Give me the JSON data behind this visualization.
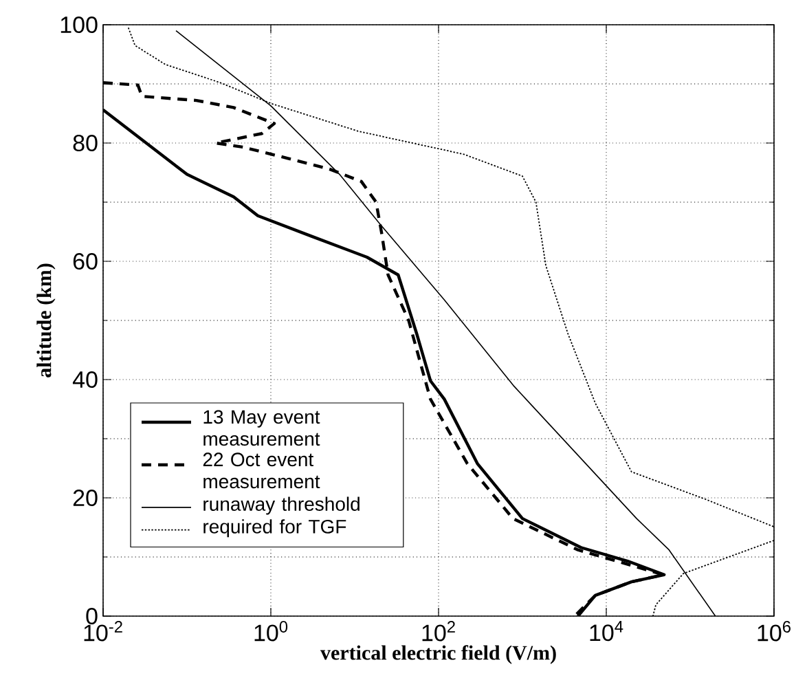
{
  "chart_data": {
    "type": "line",
    "xlabel": "vertical electric field (V/m)",
    "ylabel": "altitude (km)",
    "log": "x",
    "xlim": [
      0.01,
      1000000
    ],
    "ylim": [
      0,
      100
    ],
    "xticks": [
      {
        "value": 0.01,
        "label": "10$^{-2}$"
      },
      {
        "value": 1,
        "label": "10$^{0}$"
      },
      {
        "value": 100,
        "label": "10$^{2}$"
      },
      {
        "value": 10000,
        "label": "10$^{4}$"
      },
      {
        "value": 1000000,
        "label": "10$^{6}$"
      }
    ],
    "yticks": [
      0,
      20,
      40,
      60,
      80,
      100
    ],
    "grid": true,
    "legend": "bottom left",
    "marker": "none",
    "series": [
      {
        "name": "13 May event measurement",
        "color": "#000000",
        "line_style": "solid",
        "x": [
          0.01,
          0.1,
          0.36,
          0.7,
          3.1,
          14,
          33,
          55,
          80,
          117,
          290,
          1000,
          5000,
          18000,
          49000,
          20000,
          7400,
          4600
        ],
        "values": [
          85.6,
          74.7,
          70.9,
          67.7,
          64.2,
          60.7,
          57.7,
          47.7,
          39.8,
          36.7,
          25.8,
          16.5,
          11.6,
          9.3,
          7.0,
          5.8,
          3.5,
          0
        ]
      },
      {
        "name": "22 Oct event measurement",
        "color": "#000000",
        "line_style": "dashed",
        "x": [
          0.01,
          0.026,
          0.029,
          0.13,
          0.36,
          1.1,
          0.78,
          0.22,
          0.47,
          1.6,
          5,
          12,
          18,
          21,
          25,
          44,
          63,
          80,
          220,
          770,
          4600,
          48000,
          20000,
          7400,
          4200
        ],
        "values": [
          90.2,
          89.8,
          87.9,
          87.2,
          86,
          83.3,
          81.6,
          80,
          79.3,
          77.4,
          75.6,
          73.5,
          70,
          64.7,
          57.7,
          50,
          42,
          36.7,
          25.8,
          16.5,
          11.2,
          7,
          5.8,
          3.5,
          0
        ]
      },
      {
        "name": "runaway threshold",
        "color": "#000000",
        "line_style": "solid",
        "x": [
          0.074,
          1,
          6.6,
          20,
          117,
          780,
          23000,
          56000,
          200000
        ],
        "values": [
          99,
          86.3,
          74.7,
          66.3,
          53.5,
          39,
          16.5,
          11.2,
          0
        ]
      },
      {
        "name": "required for TGF",
        "color": "#000000",
        "line_style": "dotted",
        "x": [
          0.02,
          0.024,
          0.055,
          0.25,
          1,
          11,
          200,
          1000,
          1450,
          1900,
          3500,
          7400,
          20000,
          150000,
          1000000,
          null,
          1000000,
          83000,
          39000,
          36000
        ],
        "values": [
          99.5,
          96.5,
          93.3,
          90.2,
          86.7,
          82,
          78.1,
          74.4,
          70,
          59.3,
          47.7,
          36,
          24.4,
          19.8,
          15.1,
          null,
          12.8,
          7.2,
          1.9,
          0
        ]
      }
    ]
  }
}
